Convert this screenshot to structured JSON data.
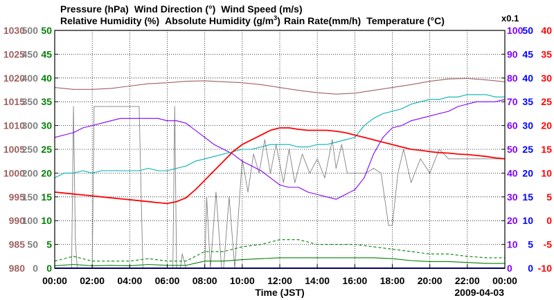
{
  "chart_data": {
    "type": "line",
    "date": "2009-04-03",
    "xlabel": "Time (JST)",
    "x_ticks": [
      "00:00",
      "02:00",
      "04:00",
      "06:00",
      "08:00",
      "10:00",
      "12:00",
      "14:00",
      "16:00",
      "18:00",
      "20:00",
      "22:00",
      "00:00"
    ],
    "xlim_hours": [
      0,
      24
    ],
    "colors": {
      "pressure": "#A06060",
      "wind_direction": "#808080",
      "wind_speed": "#008000",
      "relative_humidity": "#8000FF",
      "absolute_humidity": "#00B0B0",
      "rain_rate": "#0000FF",
      "temperature": "#FF0000",
      "grid": "#000000"
    },
    "legend": {
      "pressure": "Pressure (hPa)",
      "wind_direction": "Wind Direction (°)",
      "wind_speed": "Wind Speed (m/s)",
      "relative_humidity": "Relative Humidity (%)",
      "absolute_humidity": "Absolute Humidity (g/m",
      "absolute_humidity_sup": "3",
      "absolute_humidity_close": ")",
      "rain_rate": "Rain Rate(mm/h)",
      "temperature": "Temperature (°C)",
      "scale_note": "x0.1"
    },
    "axes": {
      "pressure": {
        "ticks": [
          "1030",
          "1025",
          "1020",
          "1015",
          "1010",
          "1005",
          "1000",
          "995",
          "990",
          "985",
          "980"
        ],
        "ylim": [
          980,
          1030
        ]
      },
      "wind_direction": {
        "ticks": [
          "500",
          "450",
          "400",
          "350",
          "300",
          "250",
          "200",
          "150",
          "100",
          "50",
          "0"
        ],
        "ylim": [
          0,
          500
        ]
      },
      "wind_speed": {
        "ticks": [
          "50",
          "45",
          "40",
          "35",
          "30",
          "25",
          "20",
          "15",
          "10",
          "5",
          "0"
        ],
        "ylim": [
          0,
          50
        ]
      },
      "relative_humidity": {
        "ticks": [
          "100",
          "90",
          "80",
          "70",
          "60",
          "50",
          "40",
          "30",
          "20",
          "10",
          "0"
        ],
        "ylim": [
          0,
          100
        ]
      },
      "rain_rate": {
        "ticks": [
          "50",
          "45",
          "40",
          "35",
          "30",
          "25",
          "20",
          "15",
          "10",
          "5",
          "0"
        ],
        "ylim": [
          0,
          50
        ]
      },
      "temperature": {
        "ticks": [
          "40",
          "35",
          "30",
          "25",
          "20",
          "15",
          "10",
          "5",
          "0",
          "-5",
          "-10"
        ],
        "ylim": [
          -10,
          40
        ]
      }
    },
    "series": [
      {
        "name": "Pressure",
        "unit": "hPa",
        "axis": "pressure",
        "x": [
          0,
          1,
          2,
          3,
          4,
          5,
          6,
          7,
          8,
          9,
          10,
          11,
          12,
          13,
          14,
          15,
          16,
          17,
          18,
          19,
          20,
          21,
          22,
          23,
          24
        ],
        "values": [
          1018,
          1017.6,
          1017.6,
          1017.8,
          1018.3,
          1018.8,
          1019.0,
          1019.3,
          1019.4,
          1019.2,
          1019.0,
          1018.6,
          1018.0,
          1017.4,
          1016.9,
          1016.6,
          1016.8,
          1017.4,
          1018.0,
          1018.6,
          1019.3,
          1019.8,
          1019.9,
          1019.6,
          1019.2
        ]
      },
      {
        "name": "Wind Direction",
        "unit": "deg",
        "axis": "wind_direction",
        "x": [
          0,
          0.5,
          0.9,
          1.0,
          1.1,
          1.2,
          1.3,
          1.6,
          1.9,
          2.0,
          2.1,
          2.2,
          2.4,
          3.0,
          3.5,
          4.0,
          4.5,
          4.7,
          4.8,
          5.0,
          6.0,
          6.3,
          6.4,
          6.5,
          6.7,
          6.8,
          7.0,
          7.3,
          7.6,
          8.0,
          8.1,
          8.3,
          8.6,
          8.9,
          9.0,
          9.3,
          9.6,
          10.0,
          10.3,
          10.6,
          10.9,
          11.2,
          11.5,
          11.8,
          12.2,
          12.5,
          12.8,
          13.2,
          13.6,
          14.0,
          14.4,
          14.8,
          15.0,
          15.3,
          15.6,
          16.0,
          16.3,
          16.6,
          17.0,
          17.4,
          17.8,
          18.0,
          18.3,
          18.6,
          19.0,
          19.5,
          20.0,
          20.5,
          21.0,
          21.5,
          22.0,
          23.0,
          24.0
        ],
        "values": [
          0,
          0,
          0,
          340,
          60,
          0,
          0,
          0,
          0,
          0,
          340,
          340,
          340,
          340,
          340,
          340,
          340,
          0,
          0,
          0,
          0,
          0,
          340,
          0,
          0,
          30,
          0,
          0,
          0,
          0,
          150,
          0,
          160,
          0,
          0,
          150,
          0,
          230,
          160,
          240,
          200,
          270,
          200,
          260,
          180,
          250,
          180,
          240,
          200,
          230,
          190,
          270,
          210,
          260,
          200,
          200,
          200,
          200,
          210,
          200,
          90,
          90,
          200,
          250,
          180,
          230,
          200,
          250,
          230,
          230,
          230,
          230,
          230
        ]
      },
      {
        "name": "Wind Speed (mean)",
        "unit": "m/s",
        "axis": "wind_speed",
        "line_style": "solid",
        "x": [
          0,
          1,
          2,
          3,
          4,
          5,
          6,
          7,
          8,
          9,
          10,
          11,
          12,
          13,
          14,
          15,
          16,
          17,
          18,
          19,
          20,
          21,
          22,
          23,
          24
        ],
        "values": [
          0.5,
          0.8,
          0.5,
          0.6,
          0.5,
          0.8,
          0.6,
          0.6,
          1.5,
          1.5,
          1.8,
          2,
          2.2,
          2.2,
          2.2,
          2.2,
          2.2,
          2.2,
          2,
          1.6,
          1.4,
          1.4,
          1.2,
          1.0,
          1.0
        ]
      },
      {
        "name": "Wind Speed (gust)",
        "unit": "m/s",
        "axis": "wind_speed",
        "line_style": "dashed",
        "x": [
          0,
          1,
          2,
          3,
          4,
          5,
          6,
          7,
          8,
          9,
          10,
          11,
          12,
          13,
          14,
          15,
          16,
          17,
          18,
          19,
          20,
          21,
          22,
          23,
          24
        ],
        "values": [
          1.5,
          2.5,
          1.5,
          1.5,
          1.5,
          2,
          1.5,
          1.5,
          3.5,
          3.5,
          4.5,
          5,
          6,
          6,
          5,
          5,
          5,
          4.5,
          4,
          3.5,
          3,
          3,
          2.5,
          2.2,
          2.2
        ]
      },
      {
        "name": "Relative Humidity",
        "unit": "%",
        "axis": "relative_humidity",
        "x": [
          0,
          0.5,
          1,
          1.5,
          2,
          2.5,
          3,
          3.5,
          4,
          4.5,
          5,
          5.5,
          6,
          6.5,
          7,
          7.5,
          8,
          8.5,
          9,
          9.5,
          10,
          10.5,
          11,
          11.5,
          12,
          12.5,
          13,
          13.5,
          14,
          14.5,
          15,
          15.5,
          16,
          16.5,
          17,
          17.5,
          18,
          18.5,
          19,
          19.5,
          20,
          20.5,
          21,
          21.5,
          22,
          22.5,
          23,
          23.5,
          24
        ],
        "values": [
          55,
          56,
          57,
          59,
          60,
          61,
          62,
          63,
          63,
          63,
          63,
          63,
          62,
          62,
          61,
          58,
          55,
          52,
          50,
          48,
          45,
          43,
          41,
          38,
          35,
          34,
          34,
          32,
          31,
          30,
          29,
          31,
          33,
          38,
          48,
          55,
          59,
          60,
          62,
          63,
          64,
          65,
          66,
          68,
          69,
          70,
          70,
          70,
          71
        ]
      },
      {
        "name": "Absolute Humidity",
        "unit": "g/m3 x0.1",
        "axis": "relative_humidity",
        "x": [
          0,
          0.5,
          1,
          1.5,
          2,
          2.5,
          3,
          3.5,
          4,
          4.5,
          5,
          5.5,
          6,
          6.5,
          7,
          7.5,
          8,
          8.5,
          9,
          9.5,
          10,
          10.5,
          11,
          11.5,
          12,
          12.5,
          13,
          13.5,
          14,
          14.5,
          15,
          15.5,
          16,
          16.5,
          17,
          17.5,
          18,
          18.5,
          19,
          19.5,
          20,
          20.5,
          21,
          21.5,
          22,
          22.5,
          23,
          23.5,
          24
        ],
        "values": [
          38,
          40,
          40,
          41,
          40,
          41,
          41,
          41,
          41,
          41,
          42,
          41,
          41,
          42,
          43,
          45,
          46,
          47,
          48,
          49,
          50,
          50,
          51,
          52,
          52,
          52,
          51,
          51,
          52,
          52,
          53,
          54,
          55,
          60,
          63,
          65,
          66,
          67,
          69,
          70,
          71,
          71,
          72,
          72,
          73,
          73,
          73,
          72,
          72
        ]
      },
      {
        "name": "Rain Rate",
        "unit": "mm/h",
        "axis": "rain_rate",
        "x": [
          0,
          6,
          12,
          18,
          24
        ],
        "values": [
          0,
          0,
          0,
          0,
          0
        ]
      },
      {
        "name": "Temperature",
        "unit": "°C",
        "axis": "temperature",
        "x": [
          0,
          0.5,
          1,
          1.5,
          2,
          2.5,
          3,
          3.5,
          4,
          4.5,
          5,
          5.5,
          6,
          6.5,
          7,
          7.5,
          8,
          8.5,
          9,
          9.5,
          10,
          10.5,
          11,
          11.5,
          12,
          12.5,
          13,
          13.5,
          14,
          14.5,
          15,
          15.5,
          16,
          16.5,
          17,
          17.5,
          18,
          18.5,
          19,
          19.5,
          20,
          20.5,
          21,
          21.5,
          22,
          22.5,
          23,
          23.5,
          24
        ],
        "values": [
          6,
          5.8,
          5.6,
          5.4,
          5.2,
          5.0,
          4.8,
          4.6,
          4.4,
          4.2,
          4.0,
          3.8,
          3.6,
          4.0,
          4.8,
          6.5,
          8.5,
          10.5,
          12.5,
          14.5,
          16.0,
          17.0,
          18.0,
          19.0,
          19.5,
          19.5,
          19.2,
          19.0,
          19.0,
          19.0,
          18.8,
          18.5,
          18.0,
          17.5,
          17.0,
          16.5,
          16.0,
          15.5,
          15.0,
          14.8,
          14.5,
          14.3,
          14.2,
          14.0,
          13.9,
          13.7,
          13.5,
          13.2,
          13.0
        ]
      }
    ]
  }
}
